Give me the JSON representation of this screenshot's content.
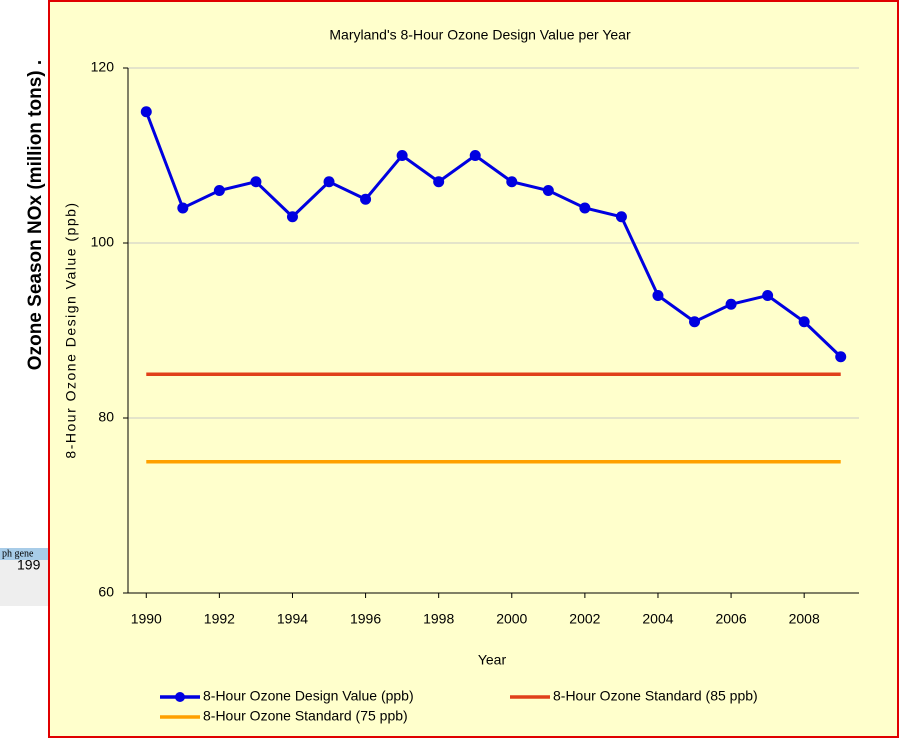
{
  "background": {
    "axis_label": "Ozone Season NOx (million tons) .",
    "snippet": "ph gene",
    "snippet_value": "199"
  },
  "chart_data": {
    "type": "line",
    "title": "Maryland's 8-Hour Ozone Design Value per Year",
    "x_label": "Year",
    "y_label": "8-Hour Ozone Design Value (ppb)",
    "x": [
      1990,
      1991,
      1992,
      1993,
      1994,
      1995,
      1996,
      1997,
      1998,
      1999,
      2000,
      2001,
      2002,
      2003,
      2004,
      2005,
      2006,
      2007,
      2008,
      2009
    ],
    "xlim": [
      1989.5,
      2009.5
    ],
    "xticks": [
      1990,
      1992,
      1994,
      1996,
      1998,
      2000,
      2002,
      2004,
      2006,
      2008
    ],
    "ylim": [
      60,
      120
    ],
    "yticks": [
      60,
      80,
      100,
      120
    ],
    "grid": true,
    "series": [
      {
        "name": "8-Hour Ozone Design Value (ppb)",
        "color": "#0000e0",
        "markers": true,
        "values": [
          115,
          104,
          106,
          107,
          103,
          107,
          105,
          110,
          107,
          110,
          107,
          106,
          104,
          103,
          94,
          91,
          93,
          94,
          91,
          87
        ]
      },
      {
        "name": "8-Hour Ozone Standard (85 ppb)",
        "color": "#e0401a",
        "markers": false,
        "values": [
          85,
          85,
          85,
          85,
          85,
          85,
          85,
          85,
          85,
          85,
          85,
          85,
          85,
          85,
          85,
          85,
          85,
          85,
          85,
          85
        ]
      },
      {
        "name": "8-Hour Ozone Standard (75 ppb)",
        "color": "#ffa000",
        "markers": false,
        "values": [
          75,
          75,
          75,
          75,
          75,
          75,
          75,
          75,
          75,
          75,
          75,
          75,
          75,
          75,
          75,
          75,
          75,
          75,
          75,
          75
        ]
      }
    ]
  }
}
